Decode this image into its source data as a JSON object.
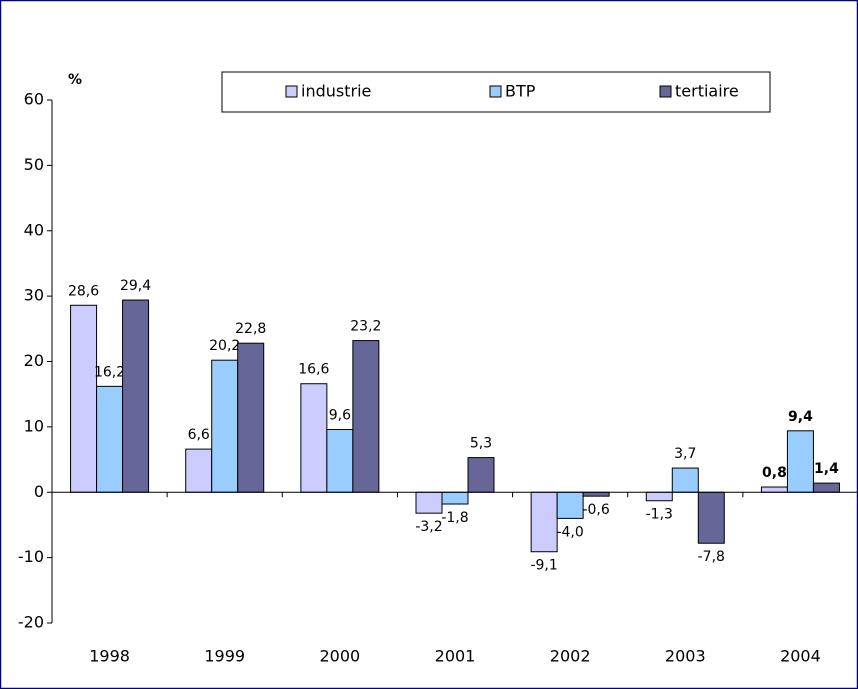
{
  "chart_data": {
    "type": "bar",
    "y_unit_label": "%",
    "categories": [
      "1998",
      "1999",
      "2000",
      "2001",
      "2002",
      "2003",
      "2004"
    ],
    "series": [
      {
        "name": "industrie",
        "color": "#ccccff",
        "values": [
          28.6,
          6.6,
          16.6,
          -3.2,
          -9.1,
          -1.3,
          0.8
        ],
        "value_labels": [
          "28,6",
          "6,6",
          "16,6",
          "-3,2",
          "-9,1",
          "-1,3",
          "0,8"
        ]
      },
      {
        "name": "BTP",
        "color": "#99ccff",
        "values": [
          16.2,
          20.2,
          9.6,
          -1.8,
          -4.0,
          3.7,
          9.4
        ],
        "value_labels": [
          "16,2",
          "20,2",
          "9,6",
          "-1,8",
          "-4,0",
          "3,7",
          "9,4"
        ]
      },
      {
        "name": "tertiaire",
        "color": "#666699",
        "values": [
          29.4,
          22.8,
          23.2,
          5.3,
          -0.6,
          -7.8,
          1.4
        ],
        "value_labels": [
          "29,4",
          "22,8",
          "23,2",
          "5,3",
          "-0,6",
          "-7,8",
          "1,4"
        ]
      }
    ],
    "ylim": [
      -20,
      60
    ],
    "yticks": [
      -20,
      -10,
      0,
      10,
      20,
      30,
      40,
      50,
      60
    ],
    "grid": false,
    "legend": "top"
  }
}
